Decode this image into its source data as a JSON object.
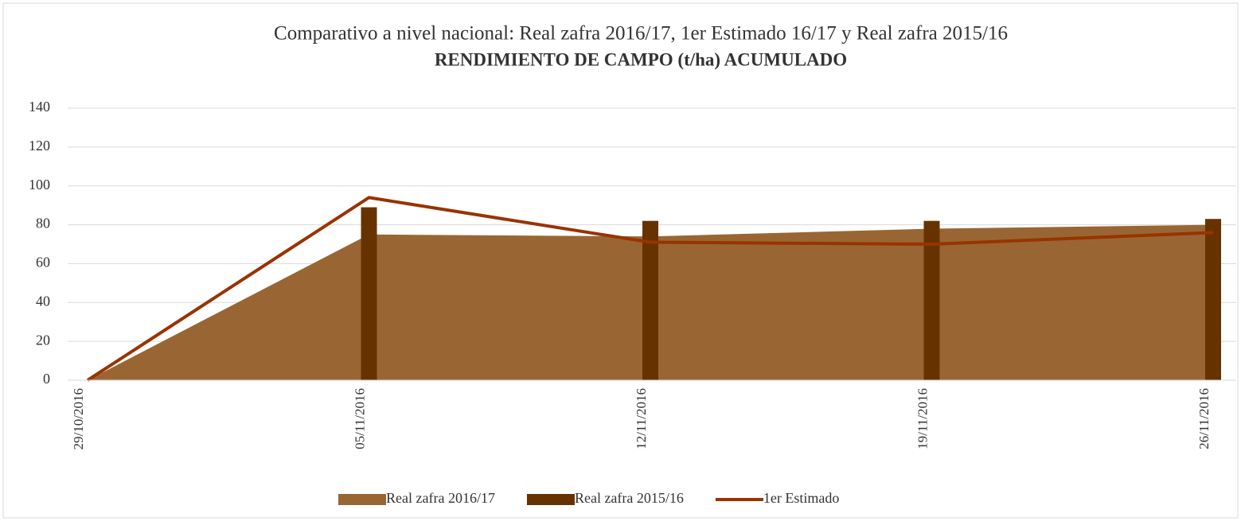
{
  "chart_data": {
    "type": "combo",
    "title": "Comparativo a nivel nacional: Real zafra 2016/17, 1er Estimado 16/17 y Real zafra 2015/16",
    "subtitle": "RENDIMIENTO DE CAMPO (t/ha) ACUMULADO",
    "categories": [
      "29/10/2016",
      "05/11/2016",
      "12/11/2016",
      "19/11/2016",
      "26/11/2016"
    ],
    "series": [
      {
        "name": "Real zafra 2016/17",
        "type": "area",
        "color": "#996633",
        "values": [
          0,
          75,
          74,
          78,
          80
        ]
      },
      {
        "name": "Real zafra 2015/16",
        "type": "bar",
        "color": "#663300",
        "values": [
          0,
          89,
          82,
          82,
          83
        ]
      },
      {
        "name": "1er Estimado",
        "type": "line",
        "color": "#993300",
        "values": [
          0,
          94,
          71,
          70,
          76
        ]
      }
    ],
    "ylim": [
      0,
      140
    ],
    "yticks": [
      0,
      20,
      40,
      60,
      80,
      100,
      120,
      140
    ],
    "grid": true,
    "legend": "bottom"
  }
}
